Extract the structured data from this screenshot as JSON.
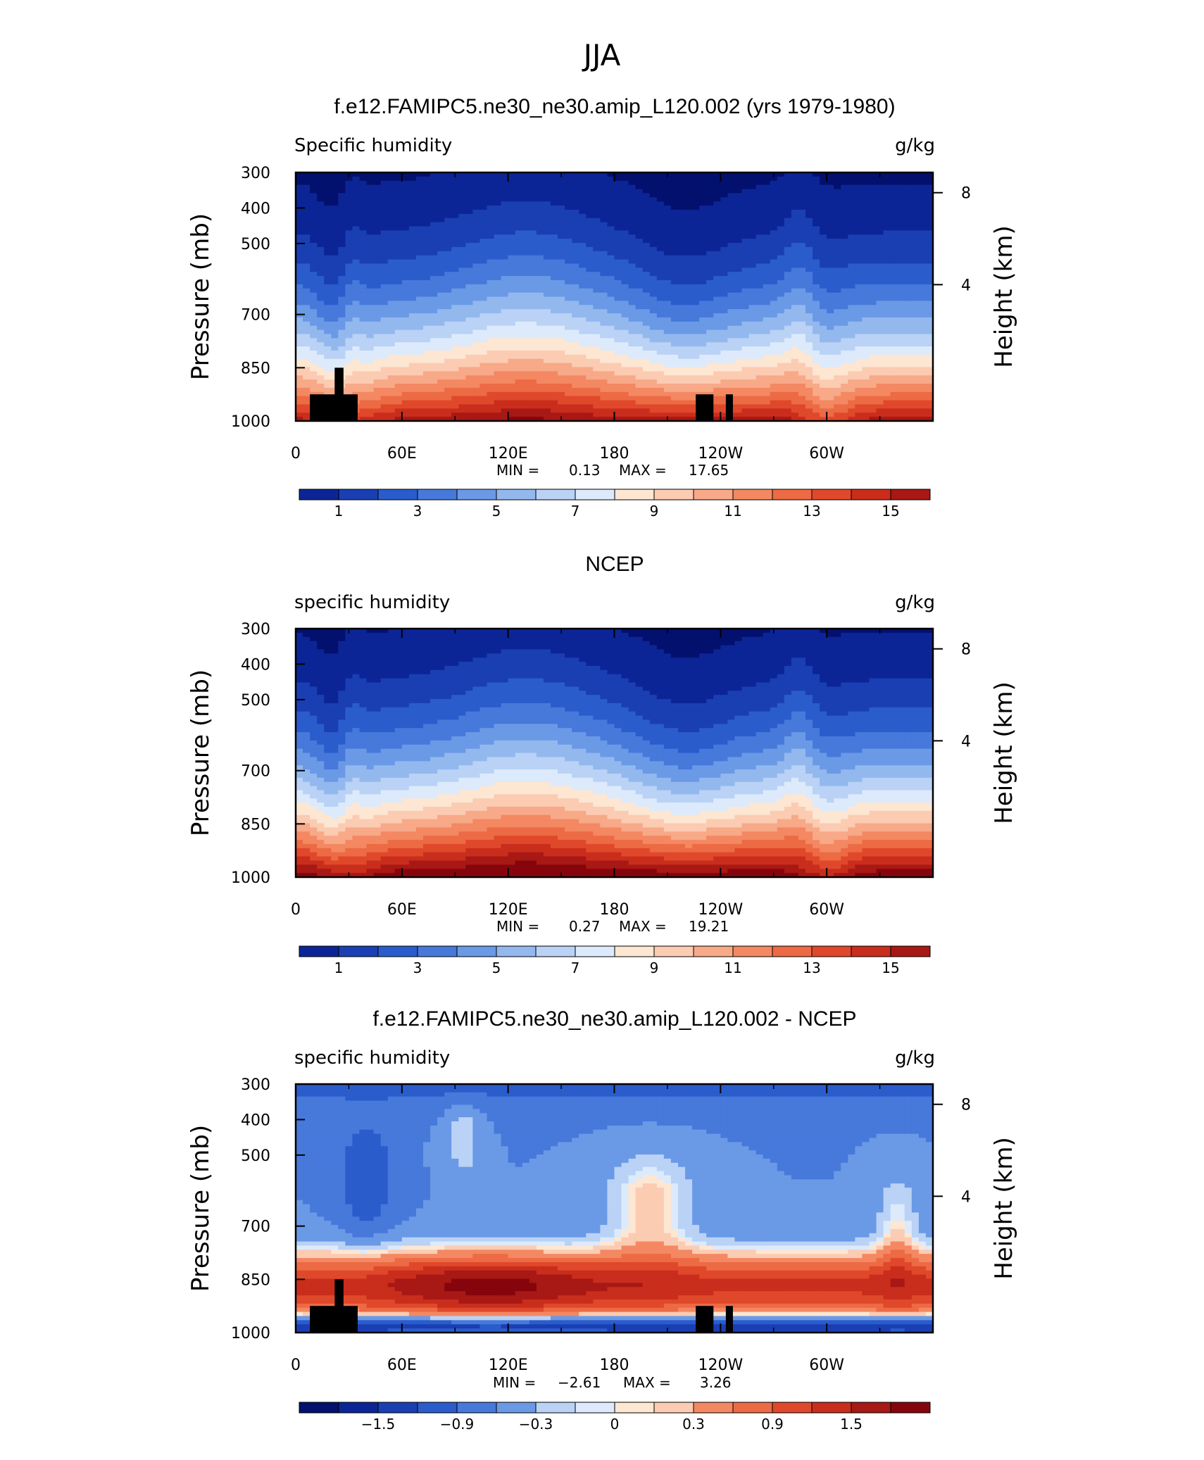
{
  "page_title": "JJA",
  "colors": {
    "positive_ramp": [
      "#fde6d2",
      "#fbcbb2",
      "#f7a988",
      "#f38862",
      "#ec6a44",
      "#e0482b",
      "#c92d1c",
      "#a81814",
      "#86050c"
    ],
    "negative_ramp": [
      "#dceafb",
      "#b9d2f5",
      "#93b8ee",
      "#6a99e6",
      "#4779db",
      "#2a5ccc",
      "#1a3fb3",
      "#0c2596",
      "#03106e"
    ],
    "land_mask": "#000000"
  },
  "chart_data": [
    {
      "type": "heatmap",
      "title": "f.e12.FAMIPC5.ne30_ne30.amip_L120.002 (yrs 1979-1980)",
      "variable": "Specific humidity",
      "units": "g/kg",
      "ylabel": "Pressure (mb)",
      "y2label": "Height (km)",
      "x_ticks": [
        "0",
        "60E",
        "120E",
        "180",
        "120W",
        "60W"
      ],
      "y_ticks": [
        "300",
        "400",
        "500",
        "700",
        "850",
        "1000"
      ],
      "y2_ticks": [
        "8",
        "4"
      ],
      "min_label": "MIN =",
      "min": "0.13",
      "max_label": "MAX =",
      "max": "17.65",
      "colorbar_labels": [
        "1",
        "3",
        "5",
        "7",
        "9",
        "11",
        "13",
        "15"
      ],
      "levels": [
        1,
        2,
        3,
        4,
        5,
        6,
        7,
        8,
        9,
        10,
        11,
        12,
        13,
        14,
        15,
        16
      ],
      "mask": true
    },
    {
      "type": "heatmap",
      "title": "NCEP",
      "variable": "specific humidity",
      "units": "g/kg",
      "ylabel": "Pressure (mb)",
      "y2label": "Height (km)",
      "x_ticks": [
        "0",
        "60E",
        "120E",
        "180",
        "120W",
        "60W"
      ],
      "y_ticks": [
        "300",
        "400",
        "500",
        "700",
        "850",
        "1000"
      ],
      "y2_ticks": [
        "8",
        "4"
      ],
      "min_label": "MIN =",
      "min": "0.27",
      "max_label": "MAX =",
      "max": "19.21",
      "colorbar_labels": [
        "1",
        "3",
        "5",
        "7",
        "9",
        "11",
        "13",
        "15"
      ],
      "levels": [
        1,
        2,
        3,
        4,
        5,
        6,
        7,
        8,
        9,
        10,
        11,
        12,
        13,
        14,
        15,
        16
      ],
      "mask": false
    },
    {
      "type": "heatmap",
      "title": "f.e12.FAMIPC5.ne30_ne30.amip_L120.002 - NCEP",
      "variable": "specific humidity",
      "units": "g/kg",
      "ylabel": "Pressure (mb)",
      "y2label": "Height (km)",
      "x_ticks": [
        "0",
        "60E",
        "120E",
        "180",
        "120W",
        "60W"
      ],
      "y_ticks": [
        "300",
        "400",
        "500",
        "700",
        "850",
        "1000"
      ],
      "y2_ticks": [
        "8",
        "4"
      ],
      "min_label": "MIN =",
      "min": "−2.61",
      "max_label": "MAX =",
      "max": "3.26",
      "colorbar_labels": [
        "−1.5",
        "−0.9",
        "−0.3",
        "0",
        "0.3",
        "0.9",
        "1.5"
      ],
      "levels": [
        -1.8,
        -1.5,
        -1.2,
        -0.9,
        -0.6,
        -0.3,
        -0.1,
        0,
        0.1,
        0.3,
        0.6,
        0.9,
        1.2,
        1.5,
        1.8
      ],
      "mask": true
    }
  ]
}
